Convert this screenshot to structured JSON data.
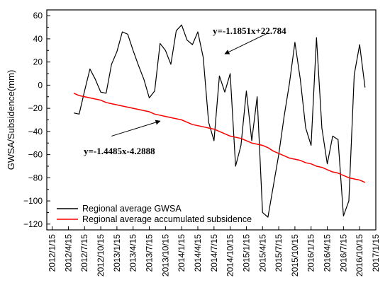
{
  "chart_data": {
    "type": "line",
    "xlabel": "",
    "ylabel": "GWSA/Subsidence(mm)",
    "ylim": [
      -125,
      65
    ],
    "yticks": [
      60,
      40,
      20,
      0,
      -20,
      -40,
      -60,
      -80,
      -100,
      -120
    ],
    "ytick_labels": [
      "60",
      "40",
      "20",
      "0",
      "−20",
      "−40",
      "−60",
      "−80",
      "−100",
      "−120"
    ],
    "xlim": [
      -1,
      60
    ],
    "xtick_positions": [
      0,
      3,
      6,
      9,
      12,
      15,
      18,
      21,
      24,
      27,
      30,
      33,
      36,
      39,
      42,
      45,
      48,
      51,
      54,
      57,
      60
    ],
    "xtick_labels": [
      "2012/1/15",
      "2012/4/15",
      "2012/7/15",
      "2012/10/15",
      "2013/1/15",
      "2013/4/15",
      "2013/7/15",
      "2013/10/15",
      "2014/1/15",
      "2014/4/15",
      "2014/7/15",
      "2014/10/15",
      "2015/1/15",
      "2015/4/15",
      "2015/7/15",
      "2015/10/15",
      "2016/1/15",
      "2016/4/15",
      "2016/7/15",
      "2016/10/15",
      "2017/1/15"
    ],
    "series": [
      {
        "name": "Regional average GWSA",
        "color": "#000000",
        "x": [
          4,
          5,
          6,
          7,
          8,
          9,
          10,
          11,
          12,
          13,
          14,
          15,
          16,
          17,
          18,
          19,
          20,
          21,
          22,
          23,
          24,
          25,
          26,
          27,
          28,
          29,
          30,
          31,
          32,
          33,
          34,
          35,
          36,
          37,
          38,
          39,
          40,
          41,
          42,
          43,
          44,
          45,
          46,
          47,
          48,
          49,
          50,
          51,
          52,
          53,
          54,
          55,
          56,
          57,
          58
        ],
        "values": [
          -24,
          -25,
          -5,
          14,
          5,
          -6,
          -7,
          18,
          29,
          46,
          44,
          30,
          17,
          5,
          -11,
          -5,
          36,
          30,
          18,
          47,
          52,
          39,
          35,
          46,
          24,
          -32,
          -48,
          8,
          -6,
          10,
          -70,
          -52,
          -5,
          -48,
          -10,
          -110,
          -114,
          -87,
          -60,
          -27,
          2,
          37,
          5,
          -37,
          -52,
          41,
          -37,
          -68,
          -44,
          -47,
          -113,
          -100,
          9,
          35,
          -2
        ],
        "label_note": ""
      },
      {
        "name": "Regional average accumulated subsidence",
        "color": "#ff0000",
        "x": [
          4,
          5,
          6,
          7,
          8,
          9,
          10,
          11,
          12,
          13,
          14,
          15,
          16,
          17,
          18,
          19,
          20,
          21,
          22,
          23,
          24,
          25,
          26,
          27,
          28,
          29,
          30,
          31,
          32,
          33,
          34,
          35,
          36,
          37,
          38,
          39,
          40,
          41,
          42,
          43,
          44,
          45,
          46,
          47,
          48,
          49,
          50,
          51,
          52,
          53,
          54,
          55,
          56,
          57,
          58
        ],
        "values": [
          -7,
          -9,
          -10,
          -11,
          -12,
          -13,
          -15,
          -16,
          -17,
          -18,
          -19,
          -20,
          -21,
          -22,
          -23,
          -25,
          -26,
          -27,
          -28,
          -29,
          -30,
          -32,
          -34,
          -35,
          -36,
          -37,
          -38,
          -40,
          -42,
          -44,
          -45,
          -46,
          -48,
          -50,
          -51,
          -52,
          -54,
          -57,
          -59,
          -61,
          -63,
          -64,
          -65,
          -67,
          -68,
          -70,
          -71,
          -73,
          -75,
          -76,
          -78,
          -80,
          -81,
          -82,
          -84
        ]
      }
    ],
    "annotations": [
      {
        "text": "y=-1.1851x+22.784",
        "arrow_from": [
          40,
          45
        ],
        "arrow_to": [
          32,
          27
        ]
      },
      {
        "text": "y=-1.4485x-4.2888",
        "arrow_from": [
          11,
          -44
        ],
        "arrow_to": [
          20,
          -31
        ]
      }
    ],
    "legend_position": "bottom-left",
    "grid": false
  }
}
